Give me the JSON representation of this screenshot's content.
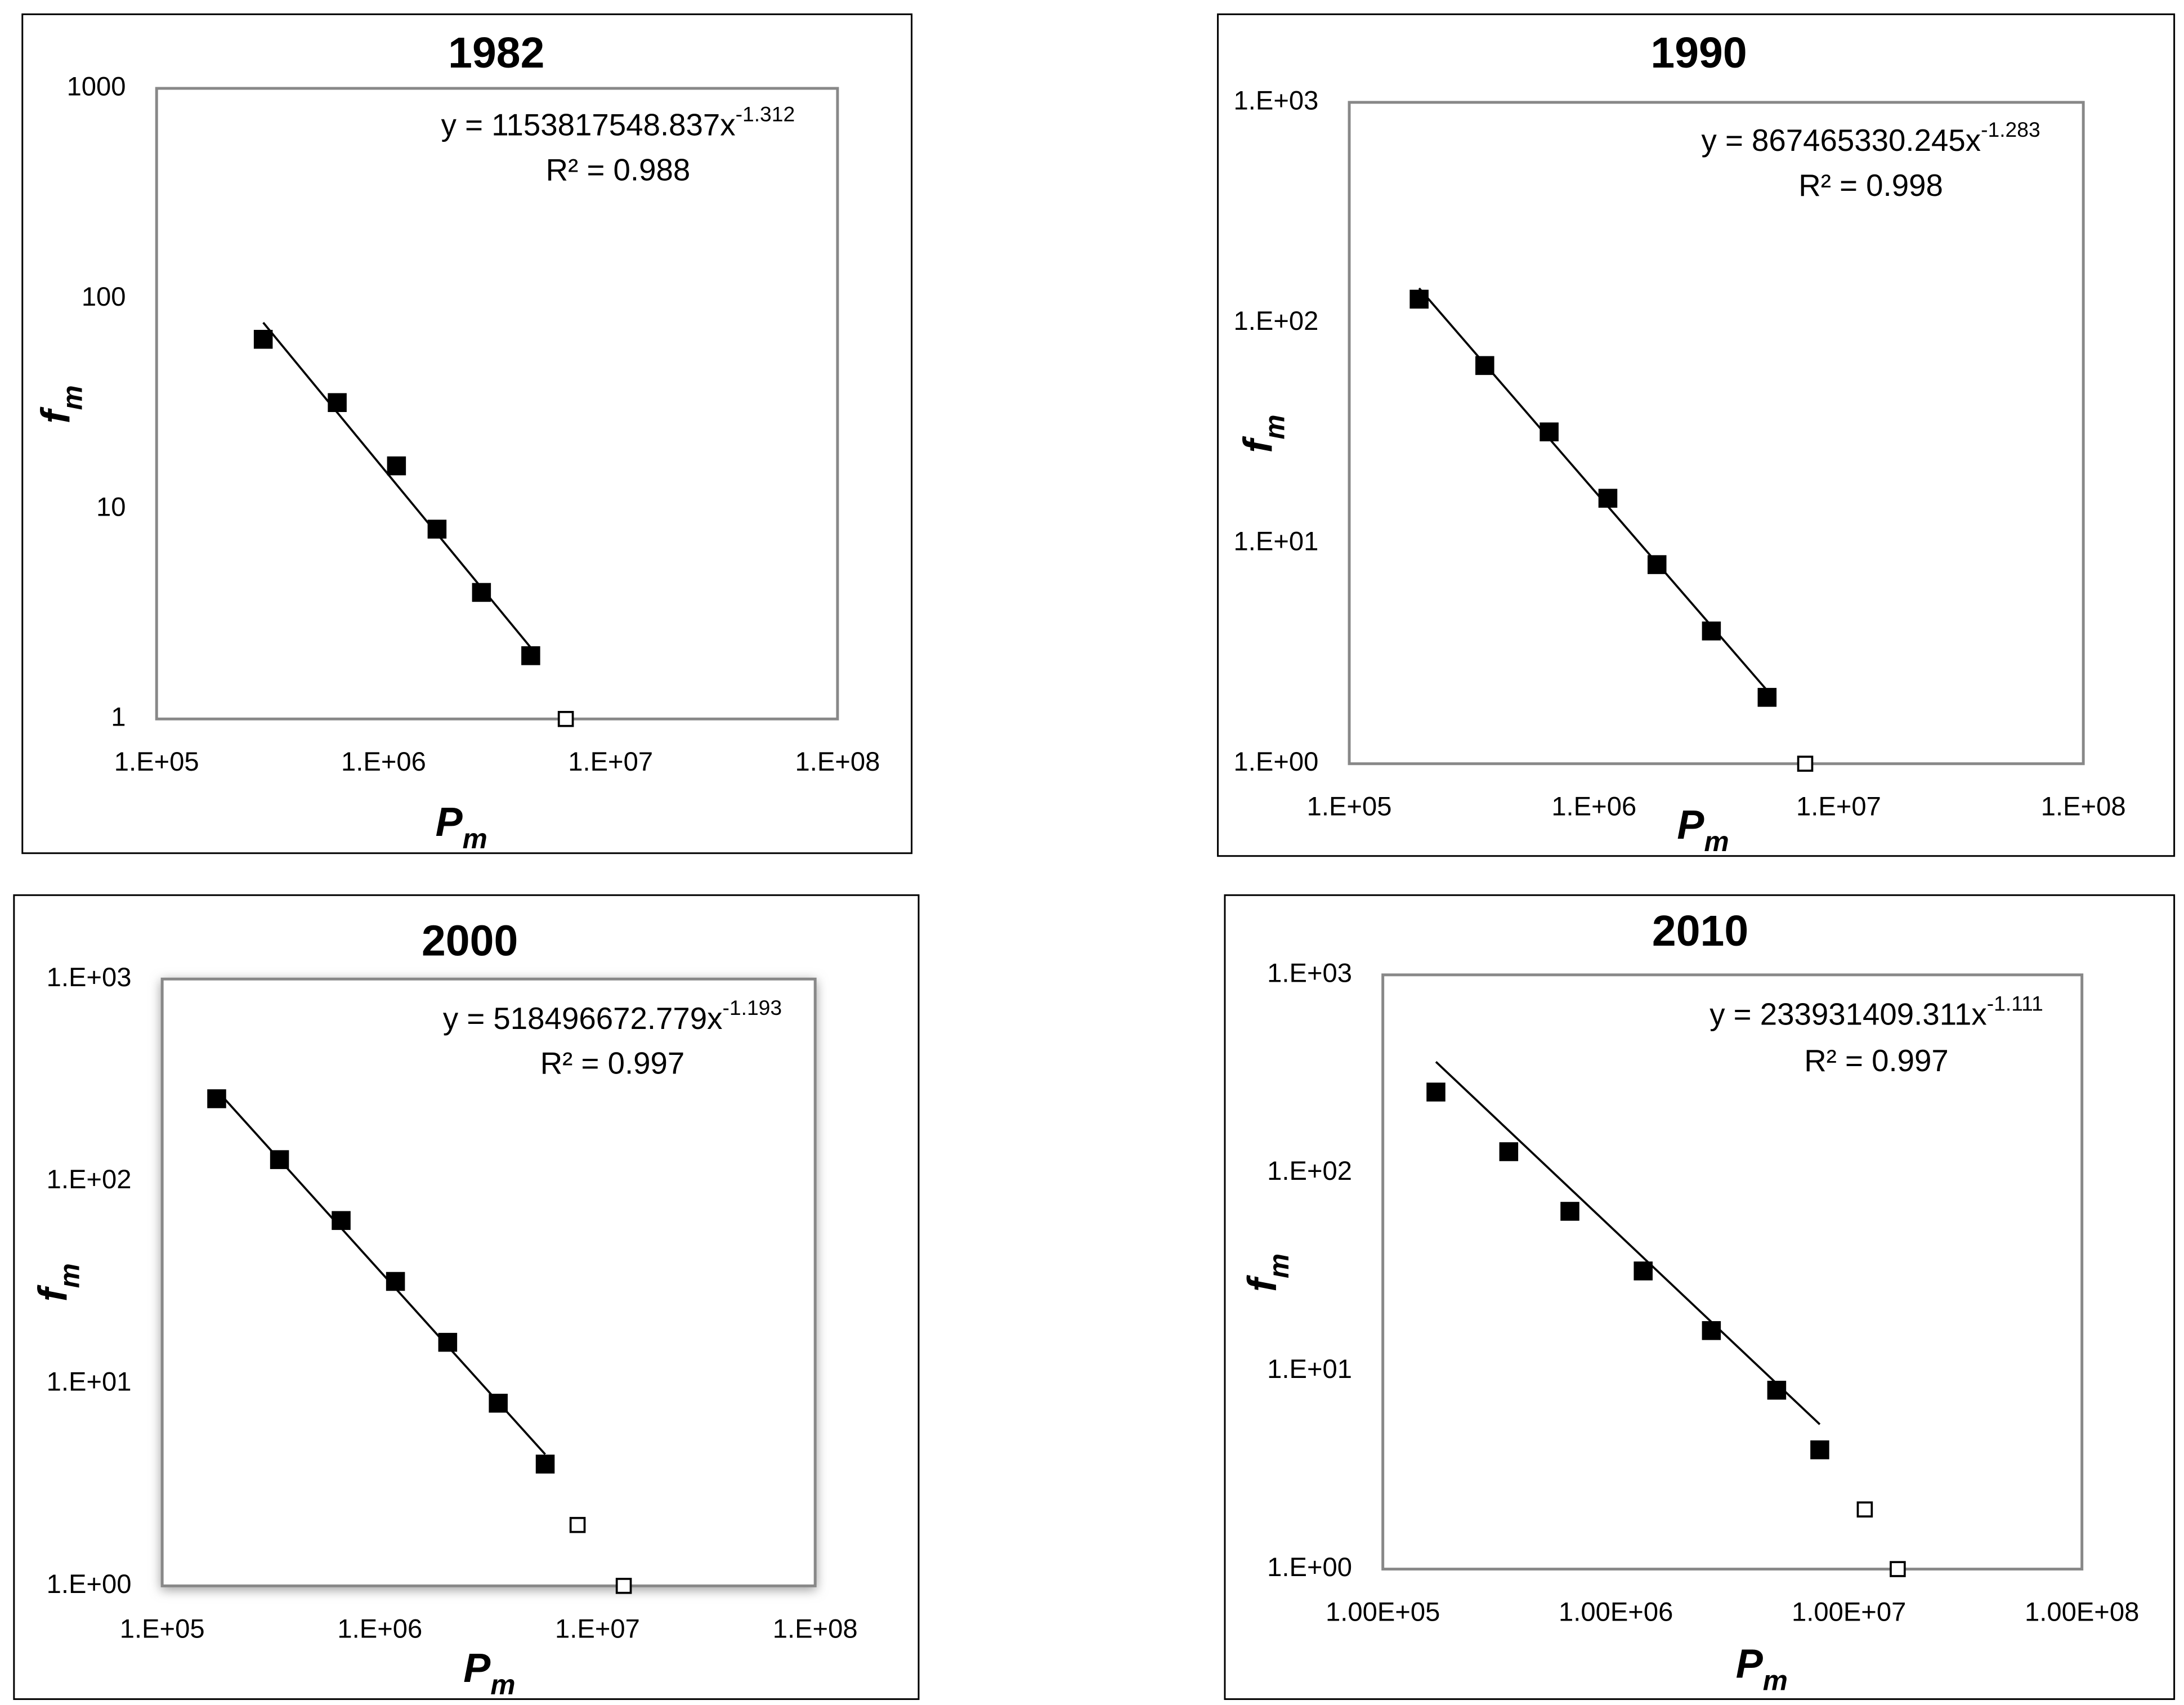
{
  "chart_data": [
    {
      "type": "scatter",
      "title": "1982",
      "xlabel": [
        "P",
        "m"
      ],
      "ylabel": [
        "f",
        "m"
      ],
      "xscale": "log",
      "yscale": "log",
      "xlim": [
        100000,
        100000000
      ],
      "ylim": [
        1,
        1000
      ],
      "xticks": [
        {
          "value": 100000,
          "label": "1.E+05"
        },
        {
          "value": 1000000,
          "label": "1.E+06"
        },
        {
          "value": 10000000,
          "label": "1.E+07"
        },
        {
          "value": 100000000,
          "label": "1.E+08"
        }
      ],
      "yticks": [
        1,
        10,
        100,
        1000
      ],
      "series": [
        {
          "marker": "filled",
          "color": "#000000",
          "x": [
            295000,
            625000,
            1140000,
            1720000,
            2700000,
            4450000
          ],
          "values": [
            64,
            32,
            16,
            8,
            4,
            2
          ]
        },
        {
          "marker": "open",
          "color": "#000000",
          "x": [
            6350000
          ],
          "values": [
            1
          ]
        }
      ],
      "fit": {
        "coefficient": 1153817548.837,
        "exponent": -1.312,
        "r2": 0.988,
        "x_range": [
          295000,
          4450000
        ],
        "equation": "y = 1153817548.837x",
        "equation_exponent": "-1.312",
        "r_squared": "R² = 0.988"
      }
    },
    {
      "type": "scatter",
      "title": "1990",
      "xlabel": [
        "P",
        "m"
      ],
      "ylabel": [
        "f",
        "m"
      ],
      "xscale": "log",
      "yscale": "log",
      "xlim": [
        100000,
        100000000
      ],
      "ylim": [
        1,
        1000
      ],
      "xticks": [
        {
          "value": 100000,
          "label": "1.E+05"
        },
        {
          "value": 1000000,
          "label": "1.E+06"
        },
        {
          "value": 10000000,
          "label": "1.E+07"
        },
        {
          "value": 100000000,
          "label": "1.E+08"
        }
      ],
      "yticks": [
        {
          "value": 1,
          "label": "1.E+00"
        },
        {
          "value": 10,
          "label": "1.E+01"
        },
        {
          "value": 100,
          "label": "1.E+02"
        },
        {
          "value": 1000,
          "label": "1.E+03"
        }
      ],
      "series": [
        {
          "marker": "filled",
          "color": "#000000",
          "x": [
            193000,
            358000,
            656000,
            1140000,
            1810000,
            3020000,
            5100000
          ],
          "values": [
            128,
            64,
            32,
            16,
            8,
            4,
            2
          ]
        },
        {
          "marker": "open",
          "color": "#000000",
          "x": [
            7300000
          ],
          "values": [
            1
          ]
        }
      ],
      "fit": {
        "coefficient": 867465330.245,
        "exponent": -1.283,
        "r2": 0.998,
        "x_range": [
          193000,
          5100000
        ],
        "equation": "y = 867465330.245x",
        "equation_exponent": "-1.283",
        "r_squared": "R² = 0.998"
      }
    },
    {
      "type": "scatter",
      "title": "2000",
      "xlabel": [
        "P",
        "m"
      ],
      "ylabel": [
        "f",
        "m"
      ],
      "xscale": "log",
      "yscale": "log",
      "xlim": [
        100000,
        100000000
      ],
      "ylim": [
        1,
        1000
      ],
      "xticks": [
        {
          "value": 100000,
          "label": "1.E+05"
        },
        {
          "value": 1000000,
          "label": "1.E+06"
        },
        {
          "value": 10000000,
          "label": "1.E+07"
        },
        {
          "value": 100000000,
          "label": "1.E+08"
        }
      ],
      "yticks": [
        {
          "value": 1,
          "label": "1.E+00"
        },
        {
          "value": 10,
          "label": "1.E+01"
        },
        {
          "value": 100,
          "label": "1.E+02"
        },
        {
          "value": 1000,
          "label": "1.E+03"
        }
      ],
      "series": [
        {
          "marker": "filled",
          "color": "#000000",
          "x": [
            178000,
            346000,
            664000,
            1180000,
            2050000,
            3500000,
            5750000
          ],
          "values": [
            256,
            128,
            64,
            32,
            16,
            8,
            4
          ]
        },
        {
          "marker": "open",
          "color": "#000000",
          "x": [
            8100000,
            13200000
          ],
          "values": [
            2,
            1
          ]
        }
      ],
      "fit": {
        "coefficient": 518496672.779,
        "exponent": -1.193,
        "r2": 0.997,
        "x_range": [
          178000,
          5750000
        ],
        "equation": "y = 518496672.779x",
        "equation_exponent": "-1.193",
        "r_squared": "R² = 0.997"
      }
    },
    {
      "type": "scatter",
      "title": "2010",
      "xlabel": [
        "P",
        "m"
      ],
      "ylabel": [
        "f",
        "m"
      ],
      "xscale": "log",
      "yscale": "log",
      "xlim": [
        100000,
        100000000
      ],
      "ylim": [
        1,
        1000
      ],
      "xticks": [
        {
          "value": 100000,
          "label": "1.00E+05"
        },
        {
          "value": 1000000,
          "label": "1.00E+06"
        },
        {
          "value": 10000000,
          "label": "1.00E+07"
        },
        {
          "value": 100000000,
          "label": "1.00E+08"
        }
      ],
      "yticks": [
        {
          "value": 1,
          "label": "1.E+00"
        },
        {
          "value": 10,
          "label": "1.E+01"
        },
        {
          "value": 100,
          "label": "1.E+02"
        },
        {
          "value": 1000,
          "label": "1.E+03"
        }
      ],
      "series": [
        {
          "marker": "filled",
          "color": "#000000",
          "x": [
            169000,
            347000,
            635000,
            1310000,
            2570000,
            4900000,
            7500000
          ],
          "values": [
            256,
            128,
            64,
            32,
            16,
            8,
            4
          ]
        },
        {
          "marker": "open",
          "color": "#000000",
          "x": [
            11700000,
            16200000
          ],
          "values": [
            2,
            1
          ]
        }
      ],
      "fit": {
        "coefficient": 233931409.311,
        "exponent": -1.111,
        "r2": 0.997,
        "x_range": [
          169000,
          7500000
        ],
        "equation": "y = 233931409.311x",
        "equation_exponent": "-1.111",
        "r_squared": "R² = 0.997"
      }
    }
  ]
}
